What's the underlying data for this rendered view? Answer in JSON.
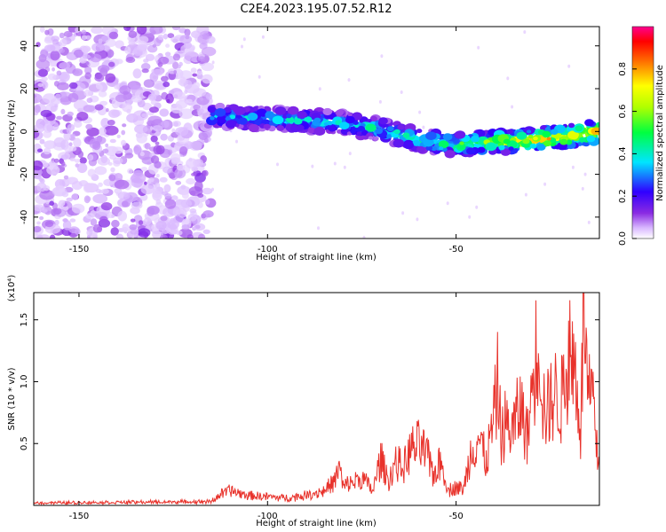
{
  "title": "C2E4.2023.195.07.52.R12",
  "chart_data": [
    {
      "type": "heatmap",
      "xlabel": "Height of straight line (km)",
      "ylabel": "Frequency (Hz)",
      "xlim": [
        -162,
        -12
      ],
      "ylim": [
        -50,
        49
      ],
      "xticks": [
        -150,
        -100,
        -50
      ],
      "yticks": [
        -40,
        -20,
        0,
        20,
        40
      ],
      "colorbar": {
        "label": "Normalized spectral amplitude",
        "range": [
          0,
          1
        ],
        "ticks": [
          0.0,
          0.2,
          0.4,
          0.6,
          0.8
        ],
        "tick_labels": [
          "0.0",
          "0.2",
          "0.4",
          "0.6",
          "0.8"
        ]
      },
      "noise_region_x": [
        -162,
        -115
      ],
      "signal_track": {
        "x": [
          -115,
          -100,
          -90,
          -80,
          -70,
          -60,
          -50,
          -40,
          -30,
          -20,
          -12
        ],
        "frequency": [
          7,
          6,
          5,
          4,
          1,
          -4,
          -6,
          -5,
          -4,
          -2,
          0
        ],
        "amplitude": [
          0.4,
          0.42,
          0.45,
          0.45,
          0.48,
          0.55,
          0.6,
          0.75,
          0.85,
          0.92,
          0.95
        ]
      }
    },
    {
      "type": "line",
      "xlabel": "Height of straight line (km)",
      "ylabel": "SNR (10 * v/v)",
      "multiplier_label": "(x10⁴)",
      "xlim": [
        -162,
        -12
      ],
      "ylim": [
        0,
        1.72
      ],
      "xticks": [
        -150,
        -100,
        -50
      ],
      "yticks": [
        0.5,
        1.0,
        1.5
      ],
      "ytick_labels": [
        "0.5",
        "1.0",
        "1.5"
      ],
      "color": "#e8322b",
      "x": [
        -162,
        -115,
        -113,
        -110,
        -108,
        -105,
        -100,
        -95,
        -90,
        -85,
        -82,
        -81,
        -80,
        -78,
        -75,
        -72,
        -70,
        -68,
        -66,
        -64,
        -62,
        -60,
        -58,
        -56,
        -54,
        -52,
        -50,
        -48,
        -46,
        -44,
        -42,
        -40,
        -39,
        -38,
        -37,
        -35,
        -33,
        -31,
        -30,
        -28,
        -27,
        -26,
        -24,
        -22,
        -20,
        -18,
        -17,
        -16,
        -15,
        -14,
        -13,
        -12
      ],
      "y": [
        0.02,
        0.03,
        0.08,
        0.12,
        0.1,
        0.08,
        0.07,
        0.06,
        0.08,
        0.12,
        0.2,
        0.32,
        0.15,
        0.18,
        0.22,
        0.12,
        0.38,
        0.2,
        0.35,
        0.3,
        0.45,
        0.48,
        0.42,
        0.25,
        0.35,
        0.12,
        0.15,
        0.13,
        0.45,
        0.55,
        0.35,
        0.7,
        0.97,
        0.55,
        0.65,
        0.6,
        0.8,
        0.55,
        0.92,
        1.41,
        0.85,
        0.75,
        0.9,
        0.85,
        1.25,
        1.05,
        0.6,
        1.72,
        0.8,
        0.95,
        0.5,
        0.3
      ]
    }
  ]
}
